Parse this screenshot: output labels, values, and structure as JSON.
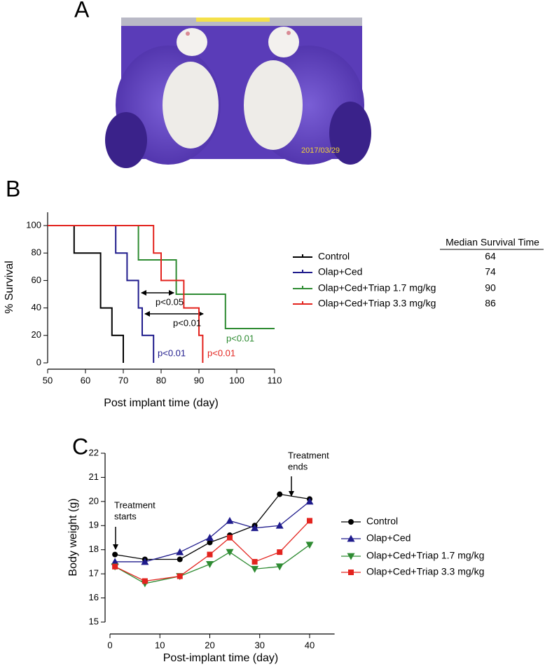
{
  "photo": {
    "panel": "A",
    "date_stamp": "2017/03/29"
  },
  "chart_data": [
    {
      "panel": "B",
      "type": "step",
      "xlabel": "Post implant time (day)",
      "ylabel": "% Survival",
      "xlim": [
        50,
        110
      ],
      "xticks": [
        50,
        60,
        70,
        80,
        90,
        100,
        110
      ],
      "ylim": [
        0,
        100
      ],
      "yticks": [
        0,
        20,
        40,
        60,
        80,
        100
      ],
      "table_header": "Median Survival Time",
      "series": [
        {
          "name": "Control",
          "color": "#000000",
          "x": [
            50,
            57,
            64,
            67,
            70
          ],
          "values": [
            100,
            80,
            40,
            20,
            0
          ],
          "median": 64
        },
        {
          "name": "Olap+Ced",
          "color": "#1f1b8c",
          "x": [
            50,
            68,
            71,
            74,
            75,
            78
          ],
          "values": [
            100,
            80,
            60,
            40,
            20,
            0
          ],
          "median": 74
        },
        {
          "name": "Olap+Ced+Triap 1.7 mg/kg",
          "color": "#2e8b32",
          "x": [
            50,
            74,
            84,
            97,
            110
          ],
          "values": [
            100,
            75,
            50,
            25,
            25
          ],
          "median": 90
        },
        {
          "name": "Olap+Ced+Triap 3.3 mg/kg",
          "color": "#e3231e",
          "x": [
            50,
            78,
            80,
            86,
            90,
            91
          ],
          "values": [
            100,
            80,
            60,
            40,
            20,
            0
          ],
          "median": 86
        }
      ],
      "annotations": [
        "p<0.05",
        "p<0.01",
        "p<0.01",
        "p<0.01",
        "p<0.01"
      ]
    },
    {
      "panel": "C",
      "type": "line",
      "xlabel": "Post-implant time (day)",
      "ylabel": "Body weight (g)",
      "xlim": [
        0,
        45
      ],
      "xticks": [
        0,
        10,
        20,
        30,
        40
      ],
      "ylim": [
        15,
        22
      ],
      "yticks": [
        15,
        16,
        17,
        18,
        19,
        20,
        21,
        22
      ],
      "x": [
        1,
        7,
        14,
        20,
        24,
        29,
        34,
        40
      ],
      "series": [
        {
          "name": "Control",
          "color": "#000000",
          "marker": "circle",
          "values": [
            17.8,
            17.6,
            17.6,
            18.3,
            18.6,
            19.0,
            20.3,
            20.1
          ]
        },
        {
          "name": "Olap+Ced",
          "color": "#1f1b8c",
          "marker": "triangle-up",
          "values": [
            17.5,
            17.5,
            17.9,
            18.5,
            19.2,
            18.9,
            19.0,
            20.0
          ]
        },
        {
          "name": "Olap+Ced+Triap 1.7 mg/kg",
          "color": "#2e8b32",
          "marker": "triangle-down",
          "values": [
            17.3,
            16.6,
            16.9,
            17.4,
            17.9,
            17.2,
            17.3,
            18.2
          ]
        },
        {
          "name": "Olap+Ced+Triap 3.3 mg/kg",
          "color": "#e3231e",
          "marker": "square",
          "values": [
            17.3,
            16.7,
            16.9,
            17.8,
            18.5,
            17.5,
            17.9,
            19.2
          ]
        }
      ],
      "annotations": [
        [
          "Treatment",
          "starts"
        ],
        [
          "Treatment",
          "ends"
        ]
      ]
    }
  ]
}
